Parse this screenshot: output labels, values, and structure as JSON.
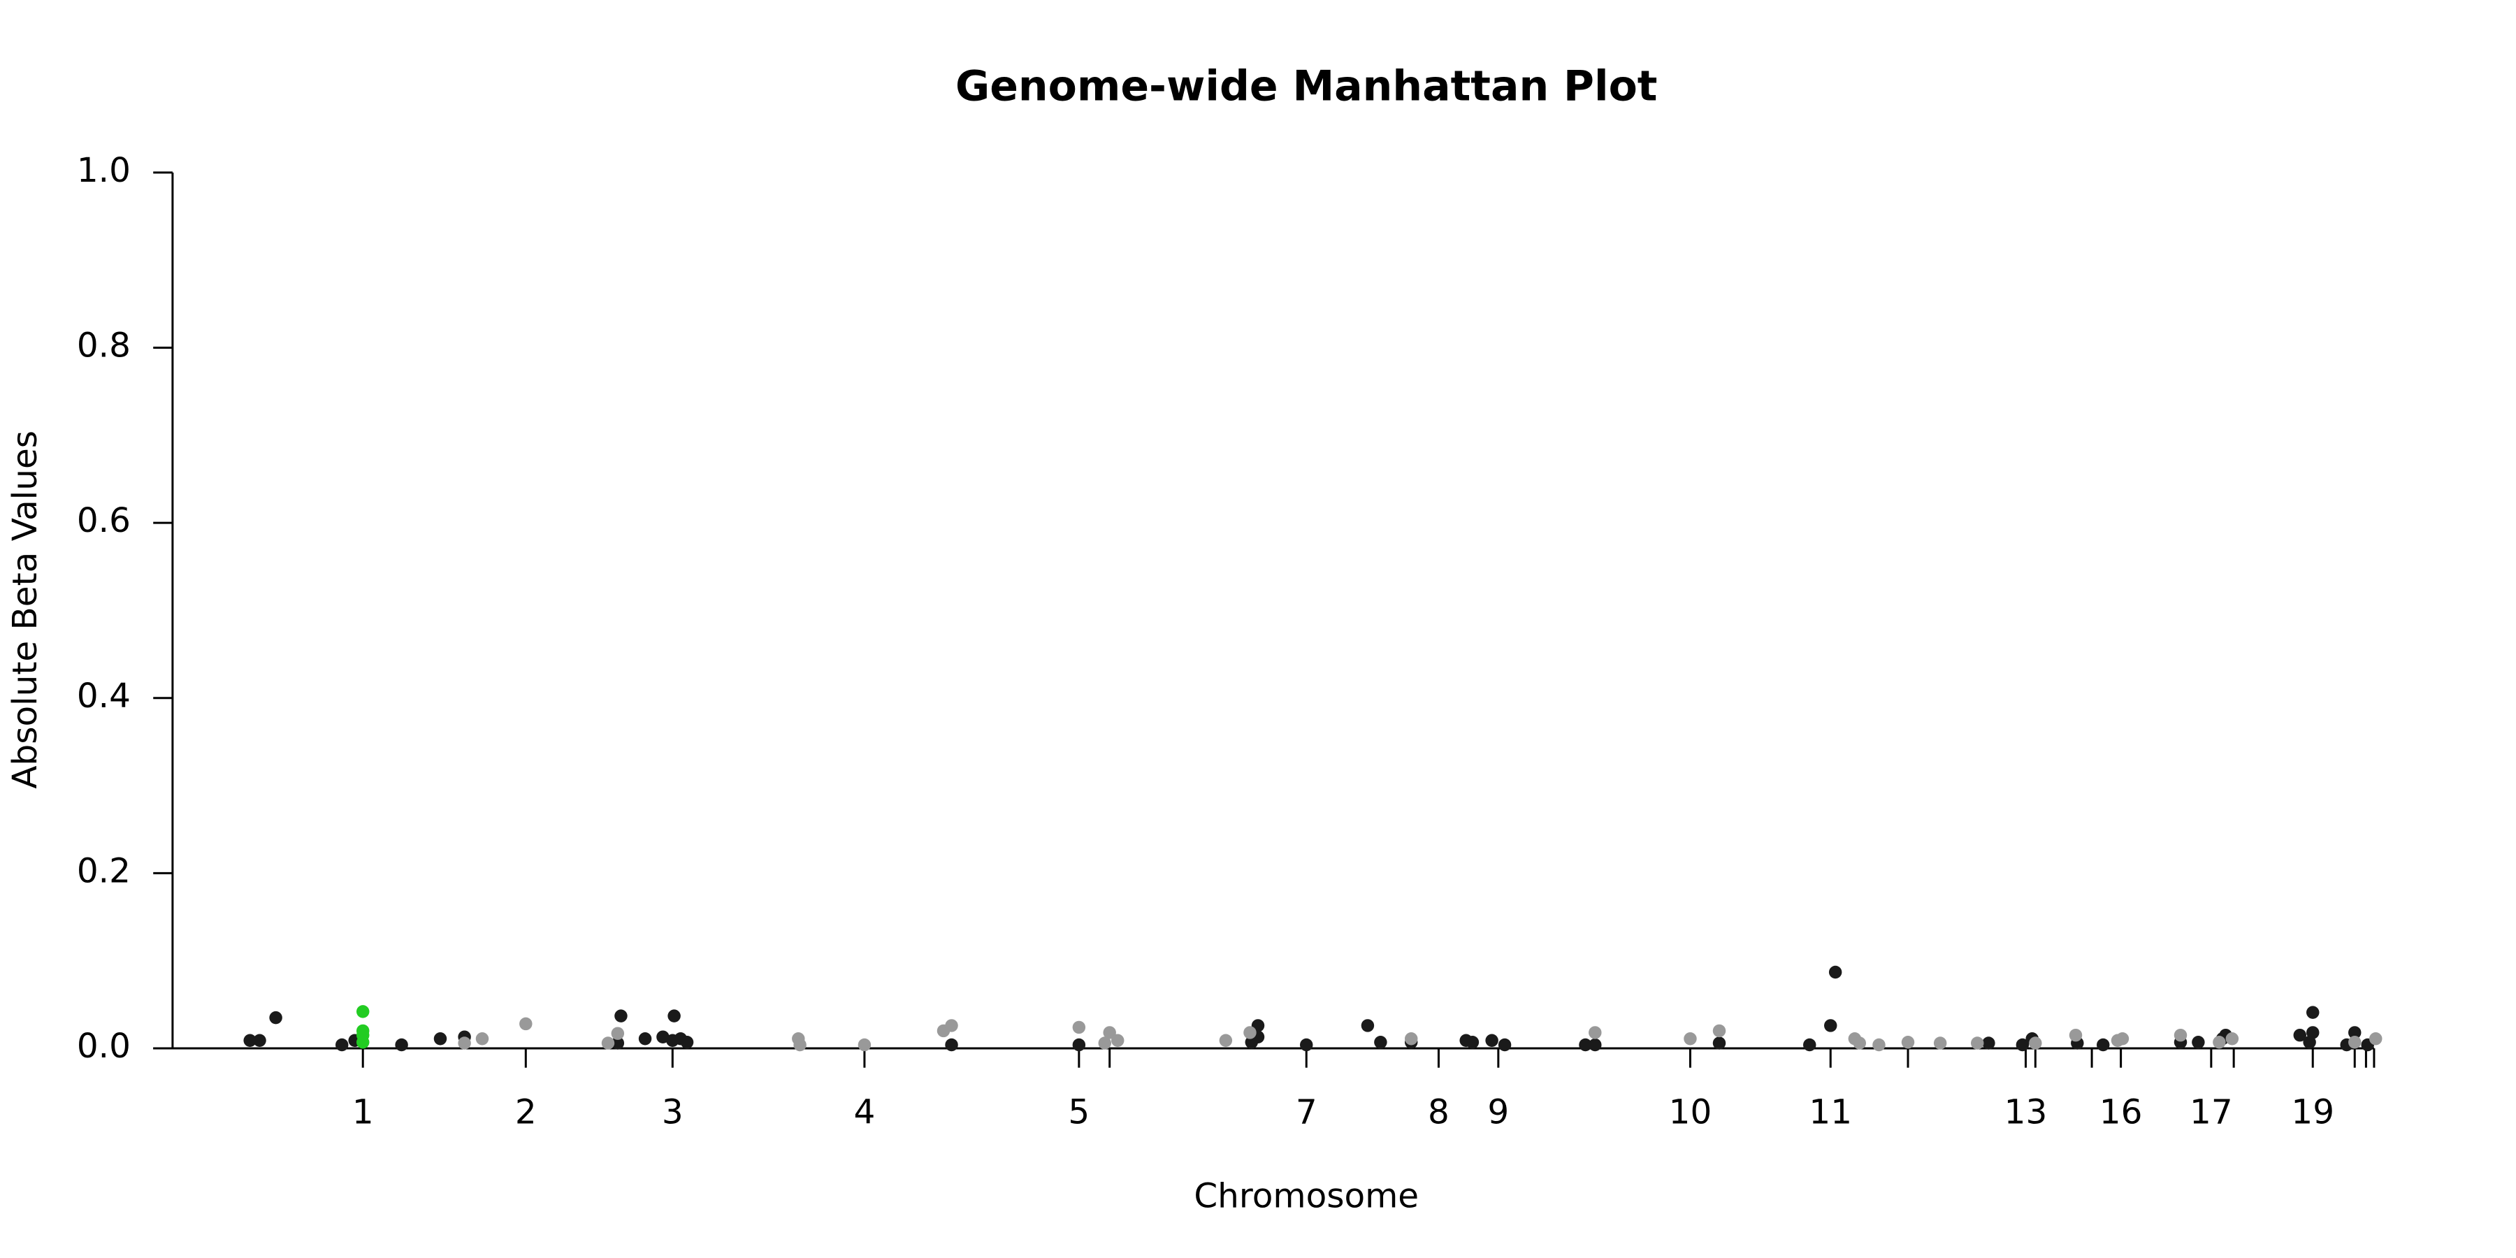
{
  "chart_data": {
    "type": "scatter",
    "title": "Genome-wide Manhattan Plot",
    "x_label": "Chromosome",
    "y_label": "Absolute Beta Values",
    "xlim": [
      107,
      1480
    ],
    "ylim": [
      0,
      1
    ],
    "yticks": [
      {
        "value": 0,
        "label": "0.0"
      },
      {
        "value": 0.2,
        "label": "0.2"
      },
      {
        "value": 0.4,
        "label": "0.4"
      },
      {
        "value": 0.6,
        "label": "0.6"
      },
      {
        "value": 0.8,
        "label": "0.8"
      },
      {
        "value": 1,
        "label": "1.0"
      }
    ],
    "xticks": [
      {
        "value": 225,
        "label": "1"
      },
      {
        "value": 326,
        "label": "2"
      },
      {
        "value": 417,
        "label": "3"
      },
      {
        "value": 536,
        "label": "4"
      },
      {
        "value": 669,
        "label": "5"
      },
      {
        "value": 688,
        "label": null
      },
      {
        "value": 810,
        "label": "7"
      },
      {
        "value": 892,
        "label": "8"
      },
      {
        "value": 929,
        "label": "9"
      },
      {
        "value": 1048,
        "label": "10"
      },
      {
        "value": 1135,
        "label": "11"
      },
      {
        "value": 1183,
        "label": null
      },
      {
        "value": 1256,
        "label": "13"
      },
      {
        "value": 1262,
        "label": null
      },
      {
        "value": 1297,
        "label": null
      },
      {
        "value": 1315,
        "label": "16"
      },
      {
        "value": 1371,
        "label": "17"
      },
      {
        "value": 1385,
        "label": null
      },
      {
        "value": 1434,
        "label": "19"
      },
      {
        "value": 1460,
        "label": null
      },
      {
        "value": 1467,
        "label": null
      },
      {
        "value": 1472,
        "label": null
      }
    ],
    "series": [
      {
        "color": "#1a1a1a",
        "x": [
          155,
          161,
          171,
          212,
          220,
          249,
          273,
          288,
          383,
          385,
          400,
          411,
          417,
          418,
          422,
          426,
          590,
          669,
          776,
          780,
          780,
          810,
          848,
          856,
          875,
          909,
          913,
          925,
          933,
          983,
          989,
          1066,
          1122,
          1135,
          1138,
          1233,
          1254,
          1260,
          1288,
          1304,
          1352,
          1363,
          1378,
          1380,
          1426,
          1432,
          1434,
          1434,
          1455,
          1460,
          1468
        ],
        "values": [
          0.009,
          0.009,
          0.035,
          0.004,
          0.009,
          0.004,
          0.011,
          0.013,
          0.006,
          0.037,
          0.011,
          0.013,
          0.009,
          0.037,
          0.011,
          0.007,
          0.004,
          0.004,
          0.007,
          0.026,
          0.013,
          0.004,
          0.026,
          0.007,
          0.007,
          0.009,
          0.007,
          0.009,
          0.004,
          0.004,
          0.004,
          0.006,
          0.004,
          0.026,
          0.087,
          0.006,
          0.004,
          0.011,
          0.006,
          0.004,
          0.007,
          0.007,
          0.011,
          0.015,
          0.015,
          0.007,
          0.041,
          0.018,
          0.004,
          0.018,
          0.004
        ]
      },
      {
        "color": "#999999",
        "x": [
          288,
          299,
          326,
          377,
          383,
          495,
          496,
          536,
          585,
          590,
          669,
          685,
          688,
          693,
          760,
          775,
          875,
          989,
          1048,
          1066,
          1150,
          1153,
          1165,
          1183,
          1203,
          1226,
          1262,
          1287,
          1313,
          1316,
          1352,
          1376,
          1384,
          1460,
          1473
        ],
        "values": [
          0.006,
          0.011,
          0.028,
          0.006,
          0.017,
          0.011,
          0.004,
          0.004,
          0.02,
          0.026,
          0.024,
          0.006,
          0.018,
          0.009,
          0.009,
          0.018,
          0.011,
          0.018,
          0.011,
          0.02,
          0.011,
          0.006,
          0.004,
          0.007,
          0.006,
          0.006,
          0.006,
          0.015,
          0.009,
          0.011,
          0.015,
          0.007,
          0.011,
          0.007,
          0.011
        ]
      },
      {
        "color": "#22cc22",
        "x": [
          225,
          225,
          225,
          225
        ],
        "values": [
          0.042,
          0.02,
          0.015,
          0.007
        ]
      }
    ]
  }
}
